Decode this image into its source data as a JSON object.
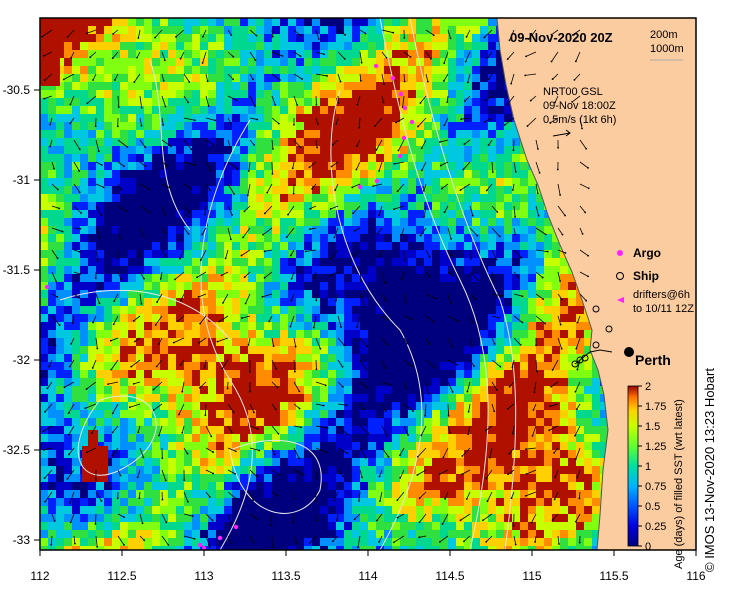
{
  "title": "09-Nov-2020 20Z",
  "depth_legend": {
    "line1": "200m",
    "line2": "1000m"
  },
  "current_info": {
    "line1": "NRT00 GSL",
    "line2": "09-Nov 18:00Z",
    "line3": "0.5m/s (1kt 6h)"
  },
  "legend": {
    "argo": "Argo",
    "ship": "Ship",
    "drifters_line1": "drifters@6h",
    "drifters_line2": "to 10/11 12Z"
  },
  "city_label": "Perth",
  "colorbar": {
    "title": "Age (days) of filled SST (wrt latest)",
    "ticks": [
      "0",
      "0.25",
      "0.5",
      "0.75",
      "1",
      "1.25",
      "1.5",
      "1.75",
      "2"
    ],
    "min": 0,
    "max": 2
  },
  "x_ticks": [
    "112",
    "112.5",
    "113",
    "113.5",
    "114",
    "114.5",
    "115",
    "115.5",
    "116"
  ],
  "y_ticks": [
    "-30.5",
    "-31",
    "-31.5",
    "-32",
    "-32.5",
    "-33"
  ],
  "credit": "© IMOS 13-Nov-2020 13:23 Hobart",
  "colors": {
    "land": "#fccca1",
    "frame": "#000000",
    "argo": "#ff22ff",
    "drifter": "#ff22ff"
  }
}
